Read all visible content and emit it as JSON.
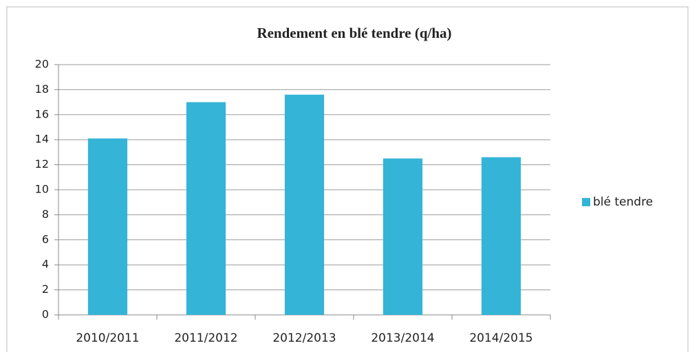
{
  "chart_data": {
    "type": "bar",
    "title": "Rendement en blé tendre (q/ha)",
    "categories": [
      "2010/2011",
      "2011/2012",
      "2012/2013",
      "2013/2014",
      "2014/2015"
    ],
    "series": [
      {
        "name": "blé tendre",
        "color": "#34b4d6",
        "values": [
          14.1,
          17,
          17.6,
          12.5,
          12.6
        ]
      }
    ],
    "ylim": [
      0,
      20
    ],
    "yticks": [
      0,
      2,
      4,
      6,
      8,
      10,
      12,
      14,
      16,
      18,
      20
    ],
    "grid": true,
    "legend": "right"
  }
}
